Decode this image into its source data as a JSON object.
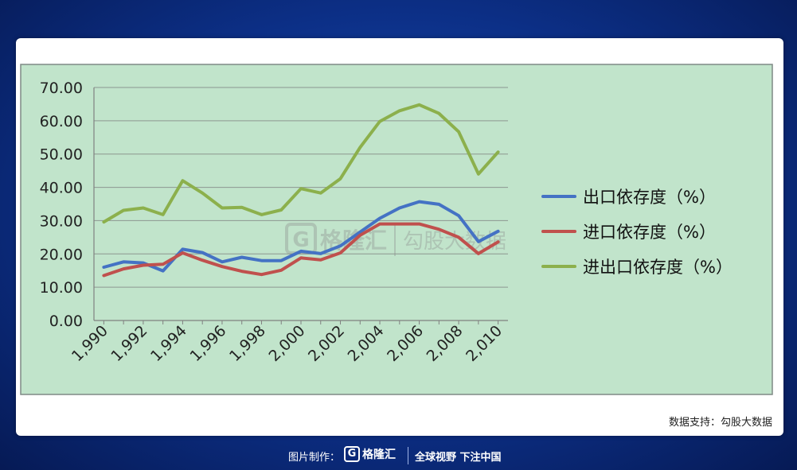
{
  "chart_data": {
    "type": "line",
    "x": [
      1990,
      1991,
      1992,
      1993,
      1994,
      1995,
      1996,
      1997,
      1998,
      1999,
      2000,
      2001,
      2002,
      2003,
      2004,
      2005,
      2006,
      2007,
      2008,
      2009,
      2010
    ],
    "xticks": [
      "1,990",
      "1,992",
      "1,994",
      "1,996",
      "1,998",
      "2,000",
      "2,002",
      "2,004",
      "2,006",
      "2,008",
      "2,010"
    ],
    "yticks": [
      "0.00",
      "10.00",
      "20.00",
      "30.00",
      "40.00",
      "50.00",
      "60.00",
      "70.00"
    ],
    "ylim": [
      0,
      70
    ],
    "grid": true,
    "legend_position": "right",
    "series": [
      {
        "name": "出口依存度（%）",
        "color": "#4472c4",
        "values": [
          16.0,
          17.6,
          17.3,
          14.9,
          21.4,
          20.4,
          17.6,
          19.0,
          18.0,
          18.0,
          20.8,
          20.1,
          22.4,
          26.6,
          30.7,
          33.8,
          35.7,
          34.9,
          31.5,
          23.7,
          26.8
        ]
      },
      {
        "name": "进口依存度（%）",
        "color": "#c0504d",
        "values": [
          13.5,
          15.5,
          16.6,
          16.9,
          20.3,
          18.1,
          16.2,
          14.8,
          13.8,
          15.1,
          18.8,
          18.2,
          20.3,
          25.6,
          29.0,
          29.0,
          29.0,
          27.4,
          25.0,
          20.1,
          23.6
        ]
      },
      {
        "name": "进出口依存度（%）",
        "color": "#8cb04c",
        "values": [
          29.6,
          33.1,
          33.8,
          31.8,
          42.0,
          38.3,
          33.8,
          34.0,
          31.8,
          33.2,
          39.6,
          38.3,
          42.6,
          52.0,
          59.8,
          63.0,
          64.8,
          62.2,
          56.7,
          44.0,
          50.6
        ]
      }
    ]
  },
  "watermark": {
    "brand": "格隆汇",
    "slogan": "勾股大数据"
  },
  "source_label": "数据支持：勾股大数据",
  "footer": {
    "made_by": "图片制作：",
    "brand": "格隆汇",
    "logo_letter": "G",
    "slogan": "全球视野 下注中国"
  }
}
